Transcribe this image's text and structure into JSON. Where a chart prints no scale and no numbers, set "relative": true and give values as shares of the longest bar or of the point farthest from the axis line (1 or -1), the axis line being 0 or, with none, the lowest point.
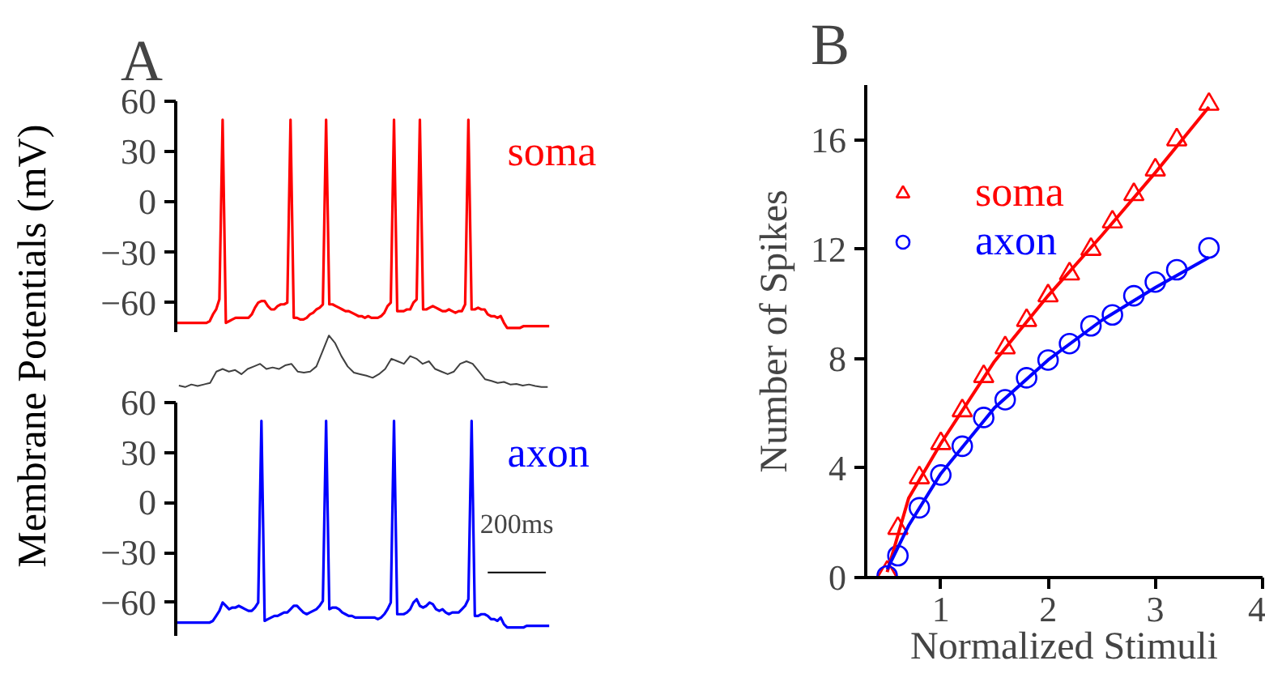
{
  "chart_data": [
    {
      "type": "line",
      "title": "A",
      "ylabel": "Membrane Potentials (mV)",
      "tick_labels": "y",
      "grid": false,
      "ylim": [
        -78,
        60
      ],
      "yticks": [
        -60,
        -30,
        0,
        30,
        60
      ],
      "categories": [
        null,
        null,
        null,
        null,
        null,
        null,
        null,
        null,
        null,
        null,
        null,
        null,
        null,
        null,
        null,
        null,
        null,
        null,
        null,
        null,
        null,
        null,
        null,
        null,
        null,
        null,
        null,
        null,
        null,
        null,
        null,
        null,
        null,
        null,
        null,
        null,
        null,
        null,
        null,
        null,
        null,
        null,
        null,
        null,
        null,
        null,
        null,
        null,
        null,
        null,
        null,
        null,
        null,
        null,
        null,
        null,
        null,
        null,
        null,
        null,
        null,
        null,
        null,
        null,
        null,
        null,
        null,
        null,
        null,
        null,
        null,
        null,
        null,
        null,
        null,
        null,
        null,
        null,
        null,
        null,
        null,
        null,
        null,
        null,
        null,
        null,
        null,
        null,
        null,
        null,
        null,
        null,
        null,
        null,
        null,
        null,
        null,
        null,
        null,
        null,
        null,
        null,
        null,
        null,
        null,
        null,
        null,
        null,
        null,
        null,
        null,
        null,
        null,
        null,
        null,
        null
      ],
      "series": [
        {
          "name": "soma",
          "color": "#ff0000",
          "values": [
            -72,
            -72,
            -72,
            -72,
            -72,
            -72,
            -72,
            -72,
            -72,
            -72,
            -71,
            -67,
            -64,
            -58,
            49,
            -72,
            -71,
            -70,
            -69,
            -69,
            -69,
            -69,
            -69,
            -67,
            -63,
            -60,
            -59,
            -59,
            -62,
            -64,
            -64,
            -62,
            -61,
            -61,
            -60,
            49,
            -69,
            -69,
            -70,
            -70,
            -69,
            -67,
            -66,
            -64,
            -63,
            -61,
            49,
            -61,
            -61,
            -62,
            -63,
            -64,
            -65,
            -65,
            -66,
            -67,
            -68,
            -68,
            -69,
            -68,
            -69,
            -69,
            -69,
            -68,
            -66,
            -62,
            -60,
            49,
            -65,
            -65,
            -65,
            -64,
            -64,
            -60,
            -58,
            49,
            -64,
            -64,
            -63,
            -62,
            -63,
            -64,
            -65,
            -65,
            -64,
            -65,
            -66,
            -65,
            -65,
            -61,
            49,
            -64,
            -64,
            -63,
            -64,
            -64,
            -67,
            -68,
            -68,
            -69,
            -68,
            -72,
            -75,
            -75,
            -75,
            -75,
            -75,
            -74,
            -74,
            -74,
            -74,
            -74,
            -74,
            -74,
            -74,
            -74
          ]
        }
      ]
    },
    {
      "type": "line",
      "relative": true,
      "tick_labels": false,
      "grid": false,
      "categories": [
        null,
        null,
        null,
        null,
        null,
        null,
        null,
        null,
        null,
        null,
        null,
        null,
        null,
        null,
        null,
        null,
        null,
        null,
        null,
        null,
        null,
        null,
        null,
        null,
        null,
        null,
        null,
        null,
        null,
        null,
        null,
        null,
        null,
        null,
        null,
        null,
        null,
        null,
        null,
        null,
        null,
        null,
        null,
        null,
        null,
        null,
        null,
        null,
        null,
        null,
        null,
        null,
        null,
        null,
        null,
        null,
        null,
        null,
        null,
        null
      ],
      "series": [
        {
          "color": "#404040",
          "values": [
            0.03,
            0,
            0.05,
            0.02,
            0.05,
            0.08,
            0.3,
            0.35,
            0.3,
            0.33,
            0.25,
            0.35,
            0.4,
            0.45,
            0.35,
            0.38,
            0.35,
            0.42,
            0.45,
            0.3,
            0.28,
            0.3,
            0.4,
            0.7,
            1,
            0.85,
            0.6,
            0.4,
            0.28,
            0.25,
            0.22,
            0.18,
            0.25,
            0.35,
            0.55,
            0.5,
            0.45,
            0.6,
            0.55,
            0.45,
            0.5,
            0.35,
            0.3,
            0.25,
            0.3,
            0.45,
            0.5,
            0.45,
            0.3,
            0.15,
            0.12,
            0.08,
            0.1,
            0.05,
            0.06,
            0.03,
            0.05,
            0.02,
            0,
            0
          ]
        }
      ]
    },
    {
      "type": "line",
      "tick_labels": "y",
      "grid": false,
      "ylim": [
        -80,
        60
      ],
      "yticks": [
        -60,
        -30,
        0,
        30,
        60
      ],
      "annotations": [
        "200ms"
      ],
      "categories": [
        null,
        null,
        null,
        null,
        null,
        null,
        null,
        null,
        null,
        null,
        null,
        null,
        null,
        null,
        null,
        null,
        null,
        null,
        null,
        null,
        null,
        null,
        null,
        null,
        null,
        null,
        null,
        null,
        null,
        null,
        null,
        null,
        null,
        null,
        null,
        null,
        null,
        null,
        null,
        null,
        null,
        null,
        null,
        null,
        null,
        null,
        null,
        null,
        null,
        null,
        null,
        null,
        null,
        null,
        null,
        null,
        null,
        null,
        null,
        null,
        null,
        null,
        null,
        null,
        null,
        null,
        null,
        null,
        null,
        null,
        null,
        null,
        null,
        null,
        null,
        null,
        null,
        null,
        null,
        null,
        null,
        null,
        null,
        null,
        null,
        null,
        null,
        null,
        null,
        null,
        null,
        null,
        null,
        null,
        null,
        null,
        null,
        null,
        null,
        null,
        null,
        null,
        null,
        null,
        null,
        null,
        null,
        null,
        null,
        null,
        null,
        null,
        null,
        null,
        null,
        null
      ],
      "series": [
        {
          "name": "axon",
          "color": "#0000ff",
          "values": [
            -72,
            -72,
            -72,
            -72,
            -72,
            -72,
            -72,
            -72,
            -72,
            -72,
            -72,
            -71,
            -68,
            -65,
            -60,
            -62,
            -64,
            -63,
            -63,
            -62,
            -63,
            -64,
            -65,
            -65,
            -63,
            -60,
            49,
            -71,
            -70,
            -69,
            -68,
            -68,
            -67,
            -66,
            -66,
            -64,
            -62,
            -62,
            -64,
            -66,
            -67,
            -66,
            -65,
            -64,
            -62,
            -59,
            49,
            -64,
            -63,
            -63,
            -64,
            -66,
            -67,
            -68,
            -68,
            -69,
            -69,
            -69,
            -69,
            -69,
            -69,
            -69,
            -70,
            -69,
            -67,
            -64,
            -60,
            49,
            -67,
            -67,
            -67,
            -66,
            -64,
            -60,
            -58,
            -62,
            -63,
            -62,
            -60,
            -61,
            -64,
            -65,
            -64,
            -66,
            -67,
            -66,
            -66,
            -66,
            -64,
            -62,
            -58,
            49,
            -68,
            -68,
            -67,
            -67,
            -68,
            -70,
            -70,
            -71,
            -69,
            -73,
            -75,
            -75,
            -75,
            -75,
            -75,
            -75,
            -74,
            -74,
            -74,
            -74,
            -74,
            -74,
            -74,
            -74
          ]
        }
      ]
    },
    {
      "type": "scatter",
      "title": "B",
      "xlabel": "Normalized Stimuli",
      "ylabel": "Number of Spikes",
      "grid": false,
      "legend": "top left",
      "xlim": [
        0.3,
        4
      ],
      "xticks": [
        1,
        2,
        3,
        4
      ],
      "ylim": [
        0,
        18
      ],
      "yticks": [
        0,
        4,
        8,
        12,
        16
      ],
      "series": [
        {
          "name": "soma",
          "color": "#ff0000",
          "marker": "triangle",
          "x": [
            0.5,
            0.6,
            0.8,
            1.0,
            1.2,
            1.4,
            1.6,
            1.8,
            2.0,
            2.2,
            2.4,
            2.6,
            2.8,
            3.0,
            3.2,
            3.5
          ],
          "values": [
            0.2,
            1.8,
            3.65,
            4.9,
            6.1,
            7.35,
            8.4,
            9.4,
            10.3,
            11.1,
            12.0,
            13.0,
            14.0,
            14.9,
            16.0,
            17.3
          ]
        },
        {
          "name": "axon",
          "color": "#0000ff",
          "marker": "circle",
          "x": [
            0.5,
            0.6,
            0.8,
            1.0,
            1.2,
            1.4,
            1.6,
            1.8,
            2.0,
            2.2,
            2.4,
            2.6,
            2.8,
            3.0,
            3.2,
            3.5
          ],
          "values": [
            0.06,
            0.8,
            2.55,
            3.75,
            4.8,
            5.85,
            6.5,
            7.3,
            7.95,
            8.55,
            9.2,
            9.6,
            10.3,
            10.8,
            11.25,
            12.05
          ]
        },
        {
          "type": "line",
          "color": "#ff0000",
          "x": [
            0.5,
            0.7,
            1.0,
            1.5,
            2.0,
            2.5,
            3.0,
            3.5
          ],
          "values": [
            0.2,
            2.9,
            4.9,
            7.9,
            10.3,
            12.5,
            14.8,
            17.2
          ]
        },
        {
          "type": "line",
          "color": "#0000ff",
          "x": [
            0.5,
            0.7,
            1.0,
            1.5,
            2.0,
            2.5,
            3.0,
            3.5
          ],
          "values": [
            0.3,
            1.9,
            3.8,
            6.2,
            7.95,
            9.4,
            10.6,
            11.7
          ]
        }
      ]
    }
  ]
}
